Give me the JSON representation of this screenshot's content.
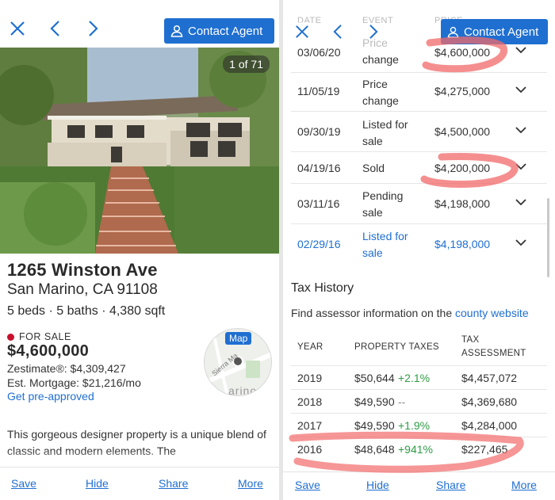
{
  "left": {
    "contact_label": "Contact Agent",
    "photo_counter": "1 of 71",
    "address": "1265 Winston Ave",
    "city_state": "San Marino, CA 91108",
    "facts": "5 beds · 5 baths · 4,380 sqft",
    "status": "FOR SALE",
    "price": "$4,600,000",
    "zestimate": "Zestimate®: $4,309,427",
    "mortgage": "Est. Mortgage: $21,216/mo",
    "preapproved": "Get pre-approved",
    "map_label": "Map",
    "map_street": "Sierra Ma",
    "map_partial": "arino",
    "description": "This gorgeous designer property is a unique blend of classic and modern elements. The",
    "bottom": [
      "Save",
      "Hide",
      "Share",
      "More"
    ]
  },
  "right": {
    "contact_label": "Contact Agent",
    "ghost_headers": [
      "DATE",
      "EVENT",
      "PRICE"
    ],
    "price_history": [
      {
        "date": "03/06/20",
        "event_l1": "Price",
        "event_l2": "change",
        "price": "$4,600,000",
        "highlight": false
      },
      {
        "date": "11/05/19",
        "event_l1": "Price",
        "event_l2": "change",
        "price": "$4,275,000",
        "highlight": false
      },
      {
        "date": "09/30/19",
        "event_l1": "Listed for",
        "event_l2": "sale",
        "price": "$4,500,000",
        "highlight": false
      },
      {
        "date": "04/19/16",
        "event_l1": "Sold",
        "event_l2": "",
        "price": "$4,200,000",
        "highlight": false
      },
      {
        "date": "03/11/16",
        "event_l1": "Pending",
        "event_l2": "sale",
        "price": "$4,198,000",
        "highlight": false
      },
      {
        "date": "02/29/16",
        "event_l1": "Listed for",
        "event_l2": "sale",
        "price": "$4,198,000",
        "highlight": true
      }
    ],
    "tax_title": "Tax History",
    "tax_sub_prefix": "Find assessor information on the ",
    "tax_sub_link": "county website",
    "tax_headers": {
      "year": "YEAR",
      "taxes": "PROPERTY TAXES",
      "assess_l1": "TAX",
      "assess_l2": "ASSESSMENT"
    },
    "tax_rows": [
      {
        "year": "2019",
        "tax": "$50,644",
        "change": "+2.1%",
        "assessment": "$4,457,072"
      },
      {
        "year": "2018",
        "tax": "$49,590",
        "change": "--",
        "assessment": "$4,369,680"
      },
      {
        "year": "2017",
        "tax": "$49,590",
        "change": "+1.9%",
        "assessment": "$4,284,000"
      },
      {
        "year": "2016",
        "tax": "$48,648",
        "change": "+941%",
        "assessment": "$227,465"
      }
    ],
    "bottom": [
      "Save",
      "Hide",
      "Share",
      "More"
    ]
  },
  "colors": {
    "accent": "#1f6fd1",
    "status_red": "#c8102e",
    "positive_green": "#2e9c45",
    "annotation": "#f26a6a"
  }
}
